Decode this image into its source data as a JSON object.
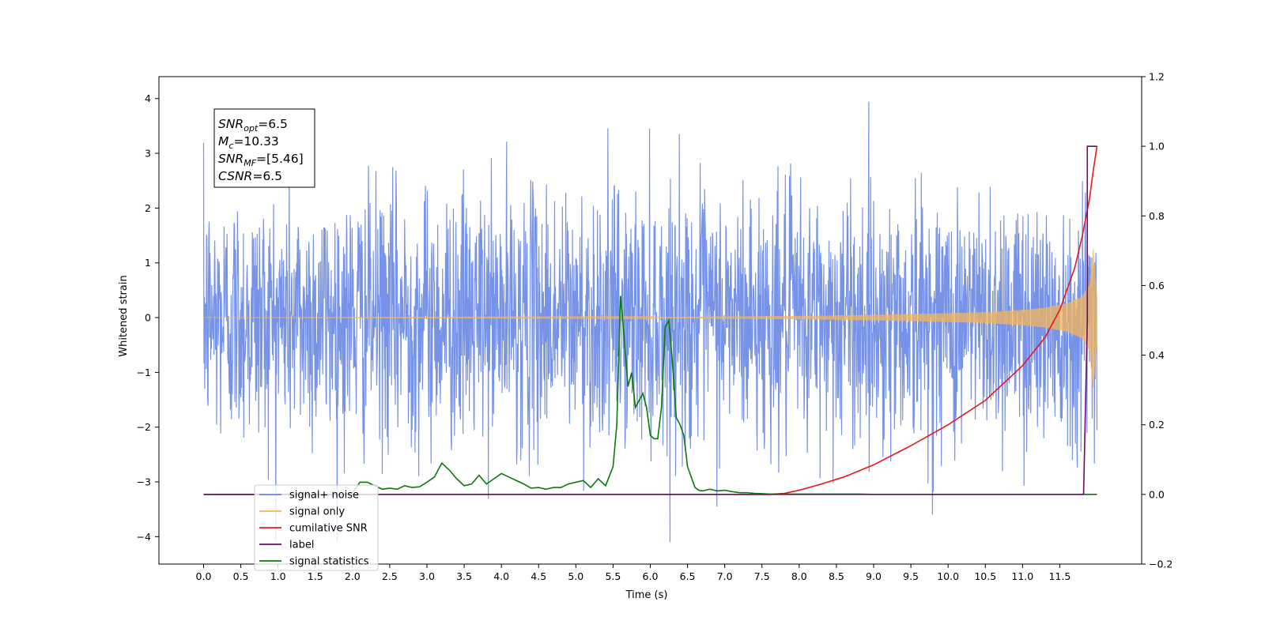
{
  "chart_data": {
    "type": "line",
    "title": "",
    "xlabel": "Time (s)",
    "ylabel": "Whitened strain",
    "xlim": [
      -0.6,
      12.6
    ],
    "ylim": [
      -4.5,
      4.4
    ],
    "y2lim": [
      -0.2,
      1.2
    ],
    "x_ticks": [
      "0.0",
      "0.5",
      "1.0",
      "1.5",
      "2.0",
      "2.5",
      "3.0",
      "3.5",
      "4.0",
      "4.5",
      "5.0",
      "5.5",
      "6.0",
      "6.5",
      "7.0",
      "7.5",
      "8.0",
      "8.5",
      "9.0",
      "9.5",
      "10.0",
      "10.5",
      "11.0",
      "11.5"
    ],
    "y_ticks": [
      "4",
      "3",
      "2",
      "1",
      "0",
      "−1",
      "−2",
      "−3",
      "−4"
    ],
    "y2_ticks": [
      "1.2",
      "1.0",
      "0.8",
      "0.6",
      "0.4",
      "0.2",
      "0.0",
      "−0.2"
    ],
    "grid": false,
    "legend_placement": "lower-left",
    "annotation": {
      "lines": [
        {
          "base": "SNR",
          "sub": "opt",
          "value": "=6.5"
        },
        {
          "base": "M",
          "sub": "c",
          "value": "=10.33"
        },
        {
          "base": "SNR",
          "sub": "MF",
          "value": "=[5.46]"
        },
        {
          "base": "CSNR",
          "sub": "",
          "value": "=6.5"
        }
      ]
    },
    "series": [
      {
        "name": "signal+ noise",
        "axis": "left",
        "color": "#6a8ae6",
        "description_kind": "noise",
        "x_range": [
          0.0,
          12.0
        ],
        "typical_range": [
          -2.0,
          2.0
        ],
        "extreme_range": [
          -4.1,
          4.0
        ]
      },
      {
        "name": "signal only",
        "axis": "left",
        "color": "#f5b55a",
        "description_kind": "chirp",
        "x_range": [
          0.0,
          12.0
        ],
        "envelope_x": [
          0,
          6,
          8,
          9,
          10,
          10.5,
          11,
          11.3,
          11.6,
          11.8,
          11.9,
          11.95,
          12.0
        ],
        "envelope_y": [
          0.0,
          0.01,
          0.03,
          0.05,
          0.08,
          0.1,
          0.14,
          0.18,
          0.26,
          0.38,
          0.6,
          1.3,
          0.4
        ]
      },
      {
        "name": "cumilative SNR",
        "axis": "right",
        "color": "#e8181c",
        "x": [
          0,
          7.6,
          7.8,
          8.0,
          8.3,
          8.6,
          9.0,
          9.5,
          10.0,
          10.5,
          11.0,
          11.3,
          11.5,
          11.7,
          11.8,
          11.9,
          11.95,
          12.0
        ],
        "y": [
          0,
          0,
          0.003,
          0.012,
          0.03,
          0.05,
          0.085,
          0.14,
          0.2,
          0.27,
          0.37,
          0.45,
          0.53,
          0.65,
          0.74,
          0.85,
          0.93,
          1.0
        ]
      },
      {
        "name": "label",
        "axis": "right",
        "color": "#6a0d6a",
        "x": [
          0,
          11.82,
          11.82,
          11.87,
          11.87,
          12.0
        ],
        "y": [
          0,
          0,
          0.0,
          0.5,
          1.0,
          1.0
        ]
      },
      {
        "name": "signal statistics",
        "axis": "right",
        "color": "#0b7a0b",
        "x": [
          0,
          1.9,
          2.0,
          2.1,
          2.2,
          2.3,
          2.4,
          2.5,
          2.6,
          2.7,
          2.8,
          2.9,
          3.0,
          3.1,
          3.2,
          3.3,
          3.4,
          3.5,
          3.6,
          3.7,
          3.8,
          3.9,
          4.0,
          4.1,
          4.2,
          4.3,
          4.4,
          4.5,
          4.6,
          4.7,
          4.8,
          4.9,
          5.0,
          5.1,
          5.2,
          5.3,
          5.4,
          5.5,
          5.55,
          5.6,
          5.65,
          5.7,
          5.75,
          5.8,
          5.85,
          5.9,
          5.95,
          6.0,
          6.05,
          6.1,
          6.15,
          6.2,
          6.25,
          6.3,
          6.35,
          6.4,
          6.45,
          6.5,
          6.55,
          6.6,
          6.65,
          6.7,
          6.8,
          6.9,
          7.0,
          7.1,
          7.2,
          7.3,
          7.4,
          7.5,
          7.6,
          8.0,
          8.5,
          8.8,
          9.0,
          9.5,
          10.0,
          12.0
        ],
        "y": [
          0,
          0,
          0.005,
          0.035,
          0.035,
          0.025,
          0.015,
          0.018,
          0.015,
          0.025,
          0.02,
          0.022,
          0.035,
          0.05,
          0.09,
          0.07,
          0.045,
          0.025,
          0.03,
          0.055,
          0.03,
          0.045,
          0.06,
          0.05,
          0.04,
          0.03,
          0.018,
          0.02,
          0.015,
          0.02,
          0.02,
          0.03,
          0.035,
          0.04,
          0.02,
          0.045,
          0.025,
          0.08,
          0.2,
          0.57,
          0.45,
          0.31,
          0.35,
          0.25,
          0.27,
          0.29,
          0.25,
          0.17,
          0.16,
          0.16,
          0.25,
          0.48,
          0.5,
          0.37,
          0.22,
          0.2,
          0.17,
          0.08,
          0.05,
          0.02,
          0.012,
          0.01,
          0.015,
          0.01,
          0.012,
          0.008,
          0.005,
          0.005,
          0.003,
          0.002,
          0.001,
          0.001,
          0.001,
          0.001,
          0.0,
          0.0,
          0.0,
          0.0
        ]
      },
      {
        "name": "signal only",
        "axis": "right",
        "color": "#0b7a0b",
        "hidden_behind_legend": true,
        "x": [
          0,
          12.0
        ],
        "y": [
          0,
          0
        ]
      }
    ],
    "legend": [
      {
        "label": "signal+ noise",
        "color": "#6a8ae6"
      },
      {
        "label": "signal only",
        "color": "#f5b55a"
      },
      {
        "label": "cumilative SNR",
        "color": "#e8181c"
      },
      {
        "label": "label",
        "color": "#6a0d6a"
      },
      {
        "label": "signal statistics",
        "color": "#0b7a0b"
      }
    ]
  }
}
